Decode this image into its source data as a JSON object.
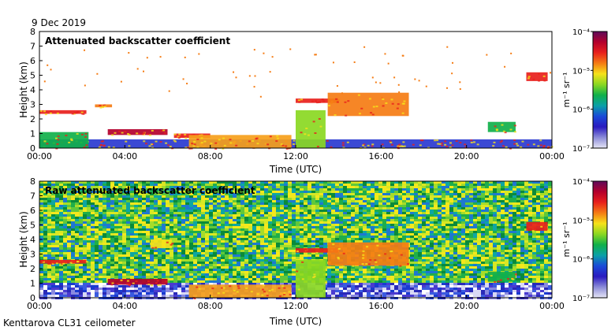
{
  "date_label": "9 Dec 2019",
  "instrument_label": "Kenttarova CL31 ceilometer",
  "colorbar": {
    "unit_label": "m⁻¹ sr⁻¹",
    "tick_labels": [
      "10⁻⁴",
      "10⁻⁵",
      "10⁻⁶",
      "10⁻⁷"
    ],
    "colors": [
      "#5e0a5a",
      "#b4002c",
      "#e8201c",
      "#f57c14",
      "#f6e21a",
      "#8ad822",
      "#10b04a",
      "#0aa0a8",
      "#1a4ad8",
      "#2a1ac0",
      "#8c8cd8",
      "#e6e6f6"
    ]
  },
  "colors": {
    "background": "#ffffff",
    "frame": "#000000",
    "raw_noise": [
      "#0a8a3a",
      "#1fae4a",
      "#60c83a",
      "#a6dc2a",
      "#d8e824",
      "#f4e81c",
      "#1e78d0",
      "#0ea6a2"
    ],
    "low_noise": [
      "#1a3ad0",
      "#2a2ab8",
      "#3a5ae0",
      "#8a8ae0",
      "#d8d8f4",
      "#ffffff",
      "#4a3ad0"
    ]
  },
  "chart_data": [
    {
      "type": "heatmap",
      "id": "attenuated",
      "title": "Attenuated backscatter coefficient",
      "xlabel": "Time (UTC)",
      "ylabel": "Height (km)",
      "xlim": [
        0,
        24
      ],
      "ylim": [
        0,
        8
      ],
      "x_tick_labels": [
        "00:00",
        "04:00",
        "08:00",
        "12:00",
        "16:00",
        "20:00",
        "00:00"
      ],
      "x_ticks": [
        0,
        4,
        8,
        12,
        16,
        20,
        24
      ],
      "y_ticks": [
        0,
        1,
        2,
        3,
        4,
        5,
        6,
        7,
        8
      ],
      "y_tick_labels": [
        "0",
        "1",
        "2",
        "3",
        "4",
        "5",
        "6",
        "7",
        "8"
      ],
      "features": [
        {
          "name": "surface layer",
          "t0": 0.0,
          "t1": 24.0,
          "h0": 0.0,
          "h1": 0.6,
          "color": "#2a3ad0"
        },
        {
          "name": "near-ground layer 00-02",
          "t0": 0.0,
          "t1": 2.3,
          "h0": 0.0,
          "h1": 1.1,
          "color": "#10b04a"
        },
        {
          "name": "low cloud layer 00-02",
          "t0": 0.0,
          "t1": 2.2,
          "h0": 2.35,
          "h1": 2.6,
          "color": "#e8201c"
        },
        {
          "name": "cloud layer 02-03",
          "t0": 2.6,
          "t1": 3.4,
          "h0": 2.8,
          "h1": 3.0,
          "color": "#f57c14"
        },
        {
          "name": "sloping cloud 03-06",
          "t0": 3.2,
          "t1": 6.0,
          "h0": 0.9,
          "h1": 1.3,
          "color": "#b4002c"
        },
        {
          "name": "stratus 06-08",
          "t0": 6.3,
          "t1": 8.0,
          "h0": 0.7,
          "h1": 1.0,
          "color": "#e8201c"
        },
        {
          "name": "fog 07-12",
          "t0": 7.0,
          "t1": 11.8,
          "h0": 0.0,
          "h1": 0.9,
          "color": "#f6a01a"
        },
        {
          "name": "precip column 12-13",
          "t0": 12.0,
          "t1": 13.4,
          "h0": 0.0,
          "h1": 2.6,
          "color": "#8ad822"
        },
        {
          "name": "cloud 12-14",
          "t0": 12.0,
          "t1": 14.0,
          "h0": 3.1,
          "h1": 3.4,
          "color": "#e8201c"
        },
        {
          "name": "thick cloud 13-17",
          "t0": 13.5,
          "t1": 17.3,
          "h0": 2.2,
          "h1": 3.8,
          "color": "#f57c14"
        },
        {
          "name": "cloud 21-22",
          "t0": 21.0,
          "t1": 22.3,
          "h0": 1.1,
          "h1": 1.8,
          "color": "#10b04a"
        },
        {
          "name": "high cloud 22-24",
          "t0": 22.8,
          "t1": 23.8,
          "h0": 4.6,
          "h1": 5.2,
          "color": "#e8201c"
        }
      ]
    },
    {
      "type": "heatmap",
      "id": "raw",
      "title": "Raw attenuated backscatter coefficient",
      "xlabel": "Time (UTC)",
      "ylabel": "Height (km)",
      "xlim": [
        0,
        24
      ],
      "ylim": [
        0,
        8
      ],
      "x_tick_labels": [
        "00:00",
        "04:00",
        "08:00",
        "12:00",
        "16:00",
        "20:00",
        "00:00"
      ],
      "x_ticks": [
        0,
        4,
        8,
        12,
        16,
        20,
        24
      ],
      "y_ticks": [
        0,
        1,
        2,
        3,
        4,
        5,
        6,
        7,
        8
      ],
      "y_tick_labels": [
        "0",
        "1",
        "2",
        "3",
        "4",
        "5",
        "6",
        "7",
        "8"
      ],
      "features": [
        {
          "name": "low cloud layer 00-02",
          "t0": 0.0,
          "t1": 2.2,
          "h0": 2.35,
          "h1": 2.6,
          "color": "#e8201c"
        },
        {
          "name": "sloping cloud 03-06",
          "t0": 3.2,
          "t1": 6.0,
          "h0": 0.9,
          "h1": 1.3,
          "color": "#b4002c"
        },
        {
          "name": "plume 05-06",
          "t0": 5.2,
          "t1": 6.2,
          "h0": 3.4,
          "h1": 4.0,
          "color": "#f6e21a"
        },
        {
          "name": "fog 07-12",
          "t0": 7.0,
          "t1": 11.8,
          "h0": 0.0,
          "h1": 0.9,
          "color": "#f6a01a"
        },
        {
          "name": "precip column 12-13",
          "t0": 12.0,
          "t1": 13.4,
          "h0": 0.0,
          "h1": 2.6,
          "color": "#8ad822"
        },
        {
          "name": "cloud 12-14",
          "t0": 12.0,
          "t1": 14.0,
          "h0": 3.1,
          "h1": 3.4,
          "color": "#e8201c"
        },
        {
          "name": "thick cloud 13-17",
          "t0": 13.5,
          "t1": 17.3,
          "h0": 2.2,
          "h1": 3.8,
          "color": "#f57c14"
        },
        {
          "name": "cloud 21-22",
          "t0": 21.0,
          "t1": 22.3,
          "h0": 1.1,
          "h1": 1.8,
          "color": "#10b04a"
        },
        {
          "name": "high cloud 22-24",
          "t0": 22.8,
          "t1": 23.8,
          "h0": 4.6,
          "h1": 5.2,
          "color": "#e8201c"
        }
      ]
    }
  ]
}
